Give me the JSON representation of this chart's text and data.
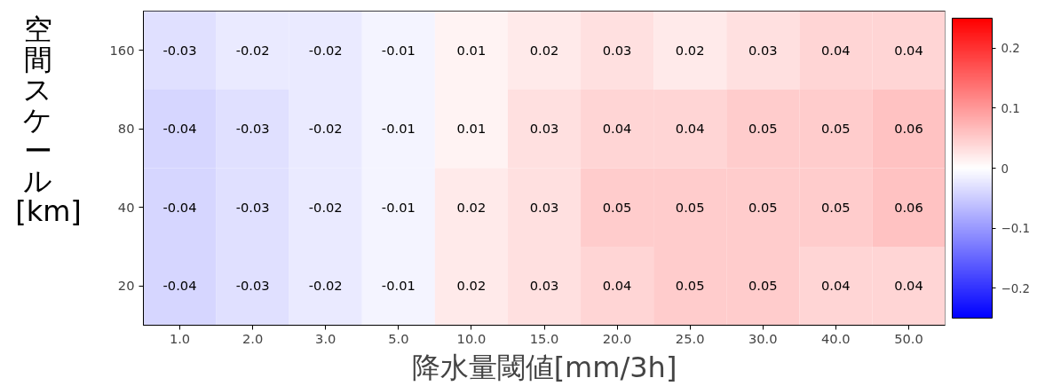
{
  "chart_data": {
    "type": "heatmap",
    "xlabel": "降水量閾値[mm/3h]",
    "ylabel": "空間スケール[km]",
    "categories": [
      "1.0",
      "2.0",
      "3.0",
      "5.0",
      "10.0",
      "15.0",
      "20.0",
      "25.0",
      "30.0",
      "40.0",
      "50.0"
    ],
    "y_categories": [
      "160",
      "80",
      "40",
      "20"
    ],
    "cells": [
      [
        -0.03,
        -0.02,
        -0.02,
        -0.01,
        0.01,
        0.02,
        0.03,
        0.02,
        0.03,
        0.04,
        0.04
      ],
      [
        -0.04,
        -0.03,
        -0.02,
        -0.01,
        0.01,
        0.03,
        0.04,
        0.04,
        0.05,
        0.05,
        0.06
      ],
      [
        -0.04,
        -0.03,
        -0.02,
        -0.01,
        0.02,
        0.03,
        0.05,
        0.05,
        0.05,
        0.05,
        0.06
      ],
      [
        -0.04,
        -0.03,
        -0.02,
        -0.01,
        0.02,
        0.03,
        0.04,
        0.05,
        0.05,
        0.04,
        0.04
      ]
    ],
    "data_labels": true,
    "clim": [
      -0.25,
      0.25
    ],
    "cticks": [
      {
        "value": -0.2,
        "label": "−0.2"
      },
      {
        "value": -0.1,
        "label": "−0.1"
      },
      0.0,
      0.1,
      0.2
    ]
  }
}
